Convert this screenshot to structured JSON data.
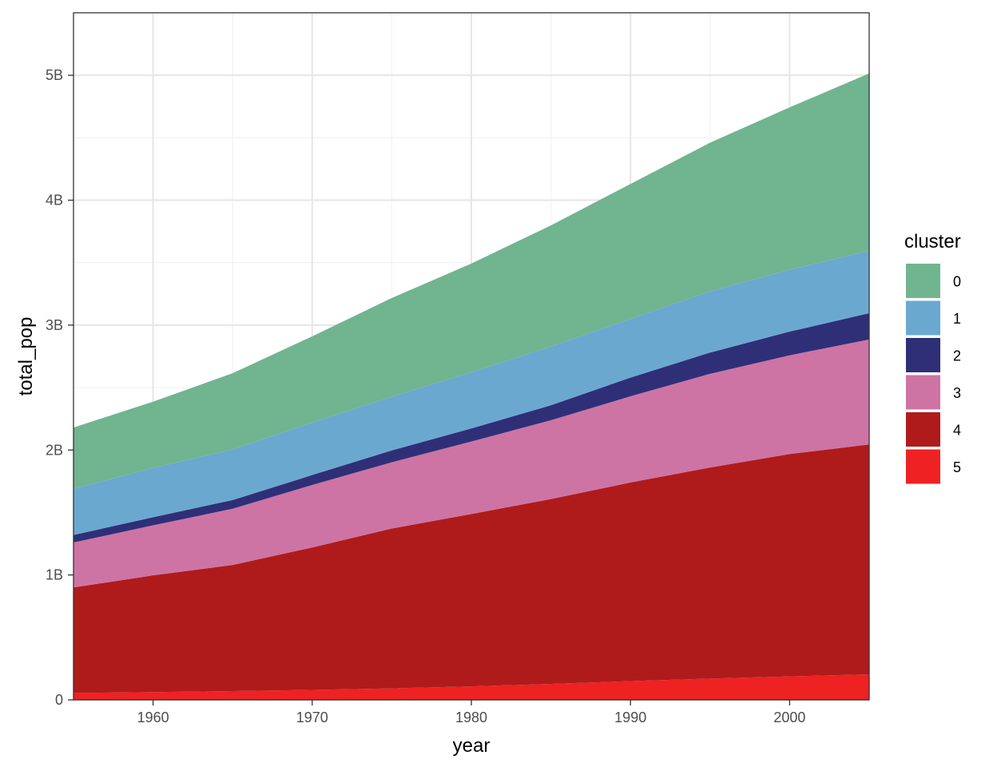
{
  "chart_data": {
    "type": "area",
    "stacked": true,
    "xlabel": "year",
    "ylabel": "total_pop",
    "xlim": [
      1955,
      2005
    ],
    "ylim": [
      0,
      5500000000
    ],
    "x_ticks": [
      1960,
      1970,
      1980,
      1990,
      2000
    ],
    "x_tick_labels": [
      "1960",
      "1970",
      "1980",
      "1990",
      "2000"
    ],
    "y_ticks": [
      0,
      1000000000,
      2000000000,
      3000000000,
      4000000000,
      5000000000
    ],
    "y_tick_labels": [
      "0",
      "1B",
      "2B",
      "3B",
      "4B",
      "5B"
    ],
    "grid": true,
    "legend_title": "cluster",
    "legend_position": "right",
    "x": [
      1955,
      1960,
      1965,
      1970,
      1975,
      1980,
      1985,
      1990,
      1995,
      2000,
      2005
    ],
    "series": [
      {
        "name": "5",
        "color": "#EE2222",
        "values": [
          55000000,
          62000000,
          70000000,
          80000000,
          92000000,
          108000000,
          128000000,
          150000000,
          170000000,
          188000000,
          205000000
        ]
      },
      {
        "name": "4",
        "color": "#AF1B1B",
        "values": [
          845000000,
          935000000,
          1010000000,
          1140000000,
          1280000000,
          1380000000,
          1480000000,
          1590000000,
          1690000000,
          1780000000,
          1840000000
        ]
      },
      {
        "name": "3",
        "color": "#CD74A5",
        "values": [
          360000000,
          400000000,
          450000000,
          500000000,
          530000000,
          580000000,
          630000000,
          690000000,
          750000000,
          790000000,
          840000000
        ]
      },
      {
        "name": "2",
        "color": "#2F2F78",
        "values": [
          60000000,
          65000000,
          70000000,
          80000000,
          95000000,
          105000000,
          120000000,
          150000000,
          170000000,
          190000000,
          210000000
        ]
      },
      {
        "name": "1",
        "color": "#6BA8D0",
        "values": [
          370000000,
          395000000,
          405000000,
          420000000,
          430000000,
          450000000,
          470000000,
          470000000,
          490000000,
          495000000,
          500000000
        ]
      },
      {
        "name": "0",
        "color": "#70B490",
        "values": [
          490000000,
          530000000,
          610000000,
          690000000,
          790000000,
          870000000,
          970000000,
          1080000000,
          1190000000,
          1300000000,
          1420000000
        ]
      }
    ],
    "legend_order": [
      "0",
      "1",
      "2",
      "3",
      "4",
      "5"
    ]
  }
}
